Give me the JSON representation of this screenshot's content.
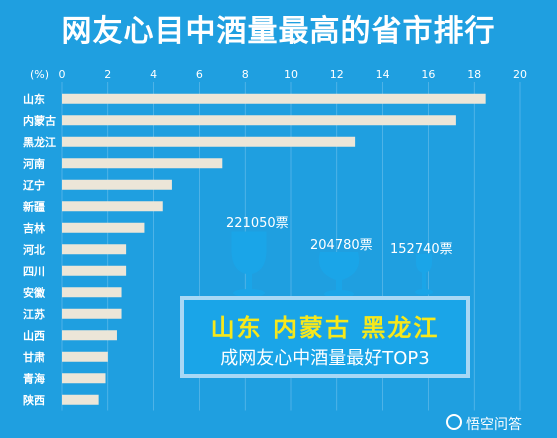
{
  "title": "网友心目中酒量最高的省市排行",
  "chart_data": {
    "type": "bar",
    "orientation": "horizontal",
    "unit_label": "(%)",
    "xlim": [
      0,
      20
    ],
    "ticks": [
      0,
      2,
      4,
      6,
      8,
      10,
      12,
      14,
      16,
      18,
      20
    ],
    "grid": true,
    "categories": [
      "山东",
      "内蒙古",
      "黑龙江",
      "河南",
      "辽宁",
      "新疆",
      "吉林",
      "河北",
      "四川",
      "安徽",
      "江苏",
      "山西",
      "甘肃",
      "青海",
      "陕西"
    ],
    "values": [
      18.5,
      17.2,
      12.8,
      7.0,
      4.8,
      4.4,
      3.6,
      2.8,
      2.8,
      2.6,
      2.6,
      2.4,
      2.0,
      1.9,
      1.6
    ],
    "colors": {
      "background": "#1f9fe0",
      "bar": "#ece6d8",
      "text": "#ffffff",
      "grid": "#6fc0ec"
    }
  },
  "callout": {
    "top3": "山东   内蒙古   黑龙江",
    "subtitle": "成网友心中酒量最好TOP3",
    "votes": [
      "221050票",
      "204780票",
      "152740票"
    ],
    "colors": {
      "glass": "#1aa5e8",
      "top3": "#f7e81b"
    }
  },
  "watermark": "悟空问答"
}
